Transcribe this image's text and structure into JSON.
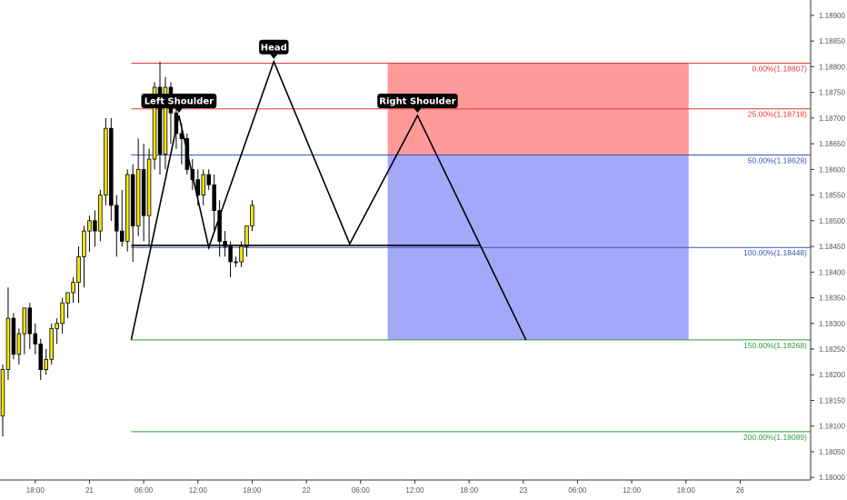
{
  "chart_data": {
    "type": "candlestick",
    "title": "",
    "xlabel": "",
    "ylabel": "",
    "ylim": [
      1.17995,
      1.1893
    ],
    "xlim": [
      -0.5,
      149
    ],
    "grid": false,
    "colors": {
      "up_body": "#f5e60a",
      "down_body": "#000000",
      "wick": "#000000",
      "fib_red": "#e53935",
      "fib_blue": "#3f51b5",
      "fib_green": "#2e9d3a",
      "zone_red": "#ff9a9a",
      "zone_blue": "#a4a8fb",
      "pattern_line": "#000000",
      "axis_text": "#555555"
    },
    "y_ticks": [
      "1.18900",
      "1.18850",
      "1.18800",
      "1.18750",
      "1.18700",
      "1.18650",
      "1.18600",
      "1.18550",
      "1.18500",
      "1.18450",
      "1.18400",
      "1.18350",
      "1.18300",
      "1.18250",
      "1.18200",
      "1.18150",
      "1.18100",
      "1.18050",
      "1.18000"
    ],
    "x_ticks": [
      {
        "label": "18:00",
        "x": 6
      },
      {
        "label": "21",
        "x": 16
      },
      {
        "label": "06:00",
        "x": 26
      },
      {
        "label": "12:00",
        "x": 36
      },
      {
        "label": "18:00",
        "x": 46
      },
      {
        "label": "22",
        "x": 56
      },
      {
        "label": "06:00",
        "x": 66
      },
      {
        "label": "12:00",
        "x": 76
      },
      {
        "label": "18:00",
        "x": 86
      },
      {
        "label": "23",
        "x": 96
      },
      {
        "label": "06:00",
        "x": 106
      },
      {
        "label": "12:00",
        "x": 116
      },
      {
        "label": "18:00",
        "x": 126
      },
      {
        "label": "26",
        "x": 136
      }
    ],
    "candles": [
      {
        "o": 1.1812,
        "h": 1.1822,
        "l": 1.1808,
        "c": 1.1821
      },
      {
        "o": 1.1821,
        "h": 1.1837,
        "l": 1.1819,
        "c": 1.1831
      },
      {
        "o": 1.1831,
        "h": 1.1832,
        "l": 1.1823,
        "c": 1.1824
      },
      {
        "o": 1.1824,
        "h": 1.1829,
        "l": 1.1822,
        "c": 1.1828
      },
      {
        "o": 1.1828,
        "h": 1.1833,
        "l": 1.1824,
        "c": 1.1833
      },
      {
        "o": 1.1833,
        "h": 1.1834,
        "l": 1.1825,
        "c": 1.1828
      },
      {
        "o": 1.1828,
        "h": 1.183,
        "l": 1.1824,
        "c": 1.1826
      },
      {
        "o": 1.1826,
        "h": 1.1827,
        "l": 1.1819,
        "c": 1.1821
      },
      {
        "o": 1.1821,
        "h": 1.1825,
        "l": 1.182,
        "c": 1.1823
      },
      {
        "o": 1.1823,
        "h": 1.183,
        "l": 1.1822,
        "c": 1.1829
      },
      {
        "o": 1.1829,
        "h": 1.1831,
        "l": 1.1826,
        "c": 1.183
      },
      {
        "o": 1.183,
        "h": 1.1835,
        "l": 1.1828,
        "c": 1.1834
      },
      {
        "o": 1.1834,
        "h": 1.1836,
        "l": 1.1831,
        "c": 1.1836
      },
      {
        "o": 1.1836,
        "h": 1.1839,
        "l": 1.1834,
        "c": 1.1838
      },
      {
        "o": 1.1838,
        "h": 1.1845,
        "l": 1.1834,
        "c": 1.1843
      },
      {
        "o": 1.1843,
        "h": 1.1849,
        "l": 1.1837,
        "c": 1.1848
      },
      {
        "o": 1.1848,
        "h": 1.1851,
        "l": 1.1844,
        "c": 1.185
      },
      {
        "o": 1.185,
        "h": 1.1852,
        "l": 1.1845,
        "c": 1.1848
      },
      {
        "o": 1.1848,
        "h": 1.1856,
        "l": 1.1846,
        "c": 1.1855
      },
      {
        "o": 1.1855,
        "h": 1.187,
        "l": 1.1853,
        "c": 1.1868
      },
      {
        "o": 1.1868,
        "h": 1.187,
        "l": 1.185,
        "c": 1.1853
      },
      {
        "o": 1.1853,
        "h": 1.1855,
        "l": 1.1843,
        "c": 1.1848
      },
      {
        "o": 1.1848,
        "h": 1.1856,
        "l": 1.1845,
        "c": 1.1846
      },
      {
        "o": 1.1846,
        "h": 1.186,
        "l": 1.1844,
        "c": 1.1859
      },
      {
        "o": 1.1859,
        "h": 1.1861,
        "l": 1.1842,
        "c": 1.1849
      },
      {
        "o": 1.1849,
        "h": 1.1866,
        "l": 1.1847,
        "c": 1.186
      },
      {
        "o": 1.186,
        "h": 1.1865,
        "l": 1.1846,
        "c": 1.1851
      },
      {
        "o": 1.1851,
        "h": 1.1864,
        "l": 1.1845,
        "c": 1.1862
      },
      {
        "o": 1.1862,
        "h": 1.1877,
        "l": 1.186,
        "c": 1.1876
      },
      {
        "o": 1.1876,
        "h": 1.1881,
        "l": 1.1859,
        "c": 1.1863
      },
      {
        "o": 1.1863,
        "h": 1.1878,
        "l": 1.186,
        "c": 1.1876
      },
      {
        "o": 1.1876,
        "h": 1.1877,
        "l": 1.1865,
        "c": 1.1871
      },
      {
        "o": 1.1871,
        "h": 1.1873,
        "l": 1.1864,
        "c": 1.1867
      },
      {
        "o": 1.1867,
        "h": 1.1869,
        "l": 1.1861,
        "c": 1.1866
      },
      {
        "o": 1.1866,
        "h": 1.1867,
        "l": 1.1859,
        "c": 1.186
      },
      {
        "o": 1.186,
        "h": 1.1862,
        "l": 1.1856,
        "c": 1.1858
      },
      {
        "o": 1.1858,
        "h": 1.186,
        "l": 1.1853,
        "c": 1.1855
      },
      {
        "o": 1.1855,
        "h": 1.186,
        "l": 1.1853,
        "c": 1.1859
      },
      {
        "o": 1.1859,
        "h": 1.186,
        "l": 1.1856,
        "c": 1.1857
      },
      {
        "o": 1.1857,
        "h": 1.1859,
        "l": 1.1848,
        "c": 1.1852
      },
      {
        "o": 1.1852,
        "h": 1.1854,
        "l": 1.1843,
        "c": 1.1846
      },
      {
        "o": 1.1846,
        "h": 1.1848,
        "l": 1.1843,
        "c": 1.1845
      },
      {
        "o": 1.1845,
        "h": 1.1846,
        "l": 1.1839,
        "c": 1.1842
      },
      {
        "o": 1.1842,
        "h": 1.1843,
        "l": 1.1841,
        "c": 1.1842
      },
      {
        "o": 1.1842,
        "h": 1.1846,
        "l": 1.1841,
        "c": 1.1845
      },
      {
        "o": 1.1845,
        "h": 1.1849,
        "l": 1.1843,
        "c": 1.1849
      },
      {
        "o": 1.1849,
        "h": 1.1854,
        "l": 1.1848,
        "c": 1.1853
      }
    ],
    "fib_levels": [
      {
        "label": "0.00%(1.18807)",
        "value": 1.18807,
        "color": "#e53935"
      },
      {
        "label": "25.00%(1.18718)",
        "value": 1.18718,
        "color": "#e53935"
      },
      {
        "label": "50.00%(1.18628)",
        "value": 1.18628,
        "color": "#3f51b5"
      },
      {
        "label": "100.00%(1.18448)",
        "value": 1.18448,
        "color": "#3f51b5"
      },
      {
        "label": "150.00%(1.18268)",
        "value": 1.18268,
        "color": "#2e9d3a"
      },
      {
        "label": "200.00%(1.18089)",
        "value": 1.18089,
        "color": "#2e9d3a"
      }
    ],
    "fib_x_range": [
      23.7,
      149
    ],
    "zones": [
      {
        "name": "red-zone",
        "x0": 71,
        "x1": 126.5,
        "y0": 1.18807,
        "y1": 1.18628,
        "color": "#ff9a9a"
      },
      {
        "name": "blue-zone",
        "x0": 71,
        "x1": 126.5,
        "y0": 1.18628,
        "y1": 1.18268,
        "color": "#a4a8fb"
      }
    ],
    "pattern_path": [
      {
        "x": 23.7,
        "y": 1.18268
      },
      {
        "x": 32.5,
        "y": 1.18705
      },
      {
        "x": 38.0,
        "y": 1.18448
      },
      {
        "x": 50.0,
        "y": 1.1881
      },
      {
        "x": 64.0,
        "y": 1.18455
      },
      {
        "x": 76.5,
        "y": 1.18705
      },
      {
        "x": 96.5,
        "y": 1.18268
      }
    ],
    "neckline": {
      "x0": 23.7,
      "x1": 88,
      "y": 1.18452
    },
    "annotations": [
      {
        "name": "left-shoulder-label",
        "text": "Left Shoulder",
        "x": 32.5,
        "y": 1.18705
      },
      {
        "name": "head-label",
        "text": "Head",
        "x": 50.0,
        "y": 1.1881
      },
      {
        "name": "right-shoulder-label",
        "text": "Right Shoulder",
        "x": 76.5,
        "y": 1.18705
      }
    ]
  }
}
